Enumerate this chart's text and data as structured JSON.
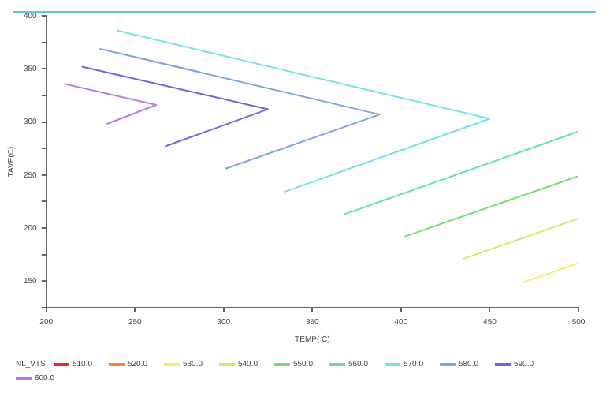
{
  "chart_data": {
    "type": "line",
    "xlabel": "TEMP( C)",
    "ylabel": "TAVE(C)",
    "legend_title": "NL_VTS",
    "legend": "bottom",
    "grid": false,
    "marker": "none",
    "line_style": "solid",
    "xlim": [
      200,
      500
    ],
    "xticks": [
      200,
      250,
      300,
      350,
      400,
      450,
      500
    ],
    "ylim": [
      125,
      400
    ],
    "yticks": [
      {
        "value": 125,
        "label": null
      },
      150,
      {
        "value": 175,
        "label": null
      },
      200,
      {
        "value": 225,
        "label": null
      },
      250,
      {
        "value": 275,
        "label": null
      },
      300,
      {
        "value": 325,
        "label": null
      },
      350,
      {
        "value": 375,
        "label": null
      },
      400
    ],
    "series": [
      {
        "name": "510.0",
        "color": "#ff2020"
      },
      {
        "name": "520.0",
        "color": "#ff8030"
      },
      {
        "name": "530.0",
        "color": "#f2f25a",
        "x": [
          469,
          500
        ],
        "values": [
          149,
          167
        ]
      },
      {
        "name": "540.0",
        "color": "#cdef5a",
        "x": [
          435,
          500
        ],
        "values": [
          171,
          209
        ]
      },
      {
        "name": "550.0",
        "color": "#6ee06e",
        "x": [
          402,
          500
        ],
        "values": [
          192,
          249
        ]
      },
      {
        "name": "560.0",
        "color": "#5ee0b0",
        "x": [
          368,
          500
        ],
        "values": [
          213,
          291
        ]
      },
      {
        "name": "570.0",
        "color": "#70e4e8",
        "x": [
          240,
          450,
          334
        ],
        "values": [
          386,
          303,
          234
        ]
      },
      {
        "name": "580.0",
        "color": "#78a4f0",
        "x": [
          230,
          388,
          301
        ],
        "values": [
          369,
          307,
          256
        ]
      },
      {
        "name": "590.0",
        "color": "#7a5cf0",
        "x": [
          220,
          325,
          267
        ],
        "values": [
          352,
          312,
          277
        ]
      },
      {
        "name": "600.0",
        "color": "#b878f0",
        "x": [
          210,
          262,
          234
        ],
        "values": [
          336,
          316,
          298
        ]
      }
    ]
  }
}
